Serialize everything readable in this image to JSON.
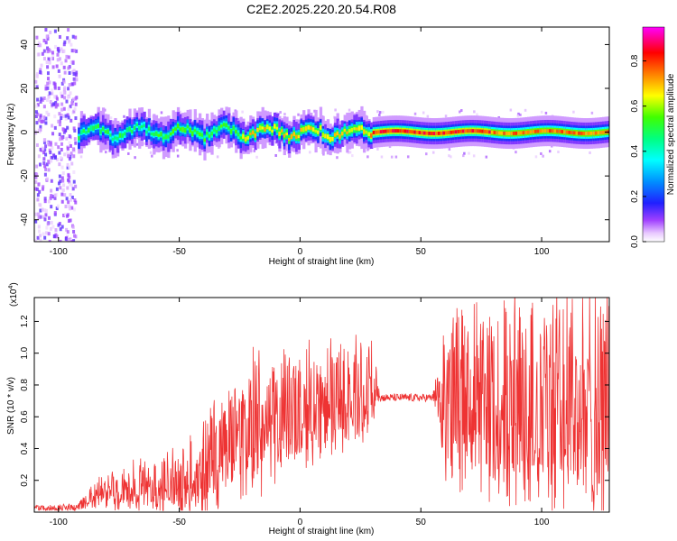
{
  "figure_title": "C2E2.2025.220.20.54.R08",
  "chart_data": [
    {
      "type": "heatmap",
      "title": "C2E2.2025.220.20.54.R08",
      "xlabel": "Height of straight line (km)",
      "ylabel": "Frequency (Hz)",
      "xlim": [
        -110,
        128
      ],
      "ylim": [
        -50,
        48
      ],
      "x_ticks": [
        -100,
        -50,
        0,
        50,
        100
      ],
      "y_ticks": [
        -40,
        -20,
        0,
        20,
        40
      ],
      "colormap": "rainbow",
      "colorbar": {
        "label": "Normalized spectral amplitude",
        "range": [
          0.0,
          0.95
        ],
        "ticks": [
          0.0,
          0.2,
          0.4,
          0.6,
          0.8
        ],
        "tick_labels": [
          "0.0",
          "0.2",
          "0.4",
          "0.6",
          "0.8"
        ]
      },
      "band": {
        "center_frequency_hz": 0,
        "height_start_km": -92,
        "height_end_km": 128,
        "segments": [
          {
            "from": -92,
            "to": -60,
            "peak_amplitude": 0.55
          },
          {
            "from": -60,
            "to": -25,
            "peak_amplitude": 0.6
          },
          {
            "from": -25,
            "to": 28,
            "peak_amplitude": 0.75
          },
          {
            "from": 28,
            "to": 78,
            "peak_amplitude": 0.92
          },
          {
            "from": 78,
            "to": 128,
            "peak_amplitude": 0.85
          }
        ]
      },
      "noise_region_km": [
        -110,
        -93
      ]
    },
    {
      "type": "line",
      "xlabel": "Height of straight line (km)",
      "ylabel": "SNR (10 * v/v)",
      "y_multiplier_label": "(x10",
      "y_multiplier_exponent": "4",
      "y_multiplier_close": ")",
      "xlim": [
        -110,
        128
      ],
      "ylim": [
        0,
        1.35
      ],
      "x_ticks": [
        -100,
        -50,
        0,
        50,
        100
      ],
      "y_ticks": [
        0.2,
        0.4,
        0.6,
        0.8,
        1.0,
        1.2
      ],
      "y_tick_labels": [
        "0.2",
        "0.4",
        "0.6",
        "0.8",
        "1.0",
        "1.2"
      ],
      "color": "#ee3333",
      "envelope": {
        "x": [
          -110,
          -92,
          -85,
          -70,
          -60,
          -50,
          -40,
          -35,
          -30,
          -20,
          -15,
          -10,
          0,
          10,
          20,
          25,
          30,
          33,
          40,
          55,
          60,
          70,
          80,
          90,
          100,
          110,
          120,
          128
        ],
        "baseline": [
          0.02,
          0.02,
          0.08,
          0.1,
          0.1,
          0.12,
          0.15,
          0.18,
          0.3,
          0.32,
          0.4,
          0.45,
          0.5,
          0.55,
          0.6,
          0.62,
          0.7,
          0.72,
          0.72,
          0.72,
          0.5,
          0.48,
          0.45,
          0.45,
          0.45,
          0.42,
          0.4,
          0.4
        ],
        "peak": [
          0.04,
          0.05,
          0.18,
          0.28,
          0.3,
          0.38,
          0.55,
          0.72,
          0.65,
          0.85,
          0.88,
          0.9,
          0.92,
          0.95,
          0.98,
          1.0,
          1.05,
          0.76,
          0.74,
          0.76,
          1.1,
          1.15,
          1.2,
          1.35,
          1.3,
          1.25,
          1.3,
          1.25
        ]
      }
    }
  ]
}
